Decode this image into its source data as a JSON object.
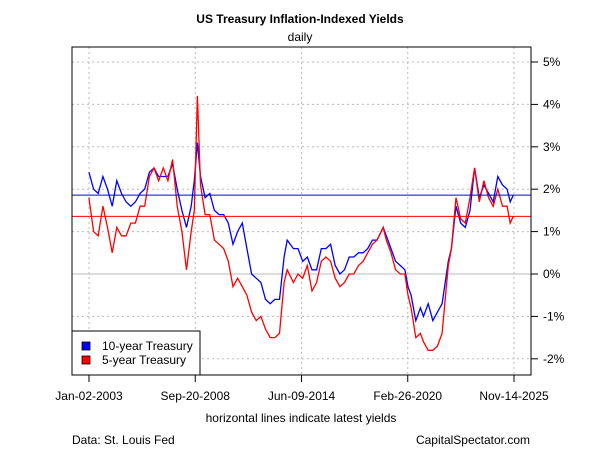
{
  "chart_data": {
    "type": "line",
    "title": "US Treasury Inflation-Indexed Yields",
    "subtitle": "daily",
    "xlabel": "horizontal lines indicate latest yields",
    "ylabel": "",
    "x_tick_labels": [
      "Jan-02-2003",
      "Sep-20-2008",
      "Jun-09-2014",
      "Feb-26-2020",
      "Nov-14-2025"
    ],
    "x_tick_dates": [
      "2003-01-02",
      "2008-09-20",
      "2014-06-09",
      "2020-02-26",
      "2025-11-14"
    ],
    "y_ticks": [
      -2,
      -1,
      0,
      1,
      2,
      3,
      4,
      5
    ],
    "y_tick_labels": [
      "-2%",
      "-1%",
      "0%",
      "1%",
      "2%",
      "3%",
      "4%",
      "5%"
    ],
    "ylim": [
      -2.4,
      5.4
    ],
    "y_axis_side": "right",
    "grid": true,
    "legend_position": "bottom-left",
    "latest_lines": {
      "10-year Treasury": 1.86,
      "5-year Treasury": 1.36
    },
    "series": [
      {
        "name": "10-year Treasury",
        "color": "#0000ff",
        "points": [
          [
            "2003-01",
            2.4
          ],
          [
            "2003-04",
            2.0
          ],
          [
            "2003-07",
            1.9
          ],
          [
            "2003-10",
            2.3
          ],
          [
            "2004-01",
            2.0
          ],
          [
            "2004-04",
            1.6
          ],
          [
            "2004-07",
            2.2
          ],
          [
            "2004-10",
            1.9
          ],
          [
            "2005-01",
            1.7
          ],
          [
            "2005-04",
            1.6
          ],
          [
            "2005-07",
            1.7
          ],
          [
            "2005-10",
            1.9
          ],
          [
            "2006-01",
            2.0
          ],
          [
            "2006-04",
            2.4
          ],
          [
            "2006-07",
            2.5
          ],
          [
            "2006-10",
            2.3
          ],
          [
            "2007-01",
            2.3
          ],
          [
            "2007-04",
            2.3
          ],
          [
            "2007-07",
            2.6
          ],
          [
            "2007-10",
            2.0
          ],
          [
            "2008-01",
            1.5
          ],
          [
            "2008-04",
            1.1
          ],
          [
            "2008-07",
            1.6
          ],
          [
            "2008-09",
            2.2
          ],
          [
            "2008-11",
            3.1
          ],
          [
            "2009-01",
            2.3
          ],
          [
            "2009-04",
            1.8
          ],
          [
            "2009-07",
            1.9
          ],
          [
            "2009-10",
            1.5
          ],
          [
            "2010-01",
            1.4
          ],
          [
            "2010-04",
            1.4
          ],
          [
            "2010-07",
            1.2
          ],
          [
            "2010-10",
            0.7
          ],
          [
            "2011-01",
            1.0
          ],
          [
            "2011-04",
            1.2
          ],
          [
            "2011-07",
            0.6
          ],
          [
            "2011-10",
            0.0
          ],
          [
            "2012-01",
            -0.1
          ],
          [
            "2012-04",
            -0.2
          ],
          [
            "2012-07",
            -0.6
          ],
          [
            "2012-10",
            -0.7
          ],
          [
            "2013-01",
            -0.6
          ],
          [
            "2013-04",
            -0.6
          ],
          [
            "2013-07",
            0.4
          ],
          [
            "2013-09",
            0.8
          ],
          [
            "2014-01",
            0.6
          ],
          [
            "2014-04",
            0.6
          ],
          [
            "2014-07",
            0.3
          ],
          [
            "2014-10",
            0.4
          ],
          [
            "2015-01",
            0.1
          ],
          [
            "2015-04",
            0.1
          ],
          [
            "2015-07",
            0.6
          ],
          [
            "2015-10",
            0.6
          ],
          [
            "2016-01",
            0.7
          ],
          [
            "2016-04",
            0.2
          ],
          [
            "2016-07",
            0.0
          ],
          [
            "2016-10",
            0.1
          ],
          [
            "2017-01",
            0.4
          ],
          [
            "2017-04",
            0.4
          ],
          [
            "2017-07",
            0.5
          ],
          [
            "2017-10",
            0.5
          ],
          [
            "2018-01",
            0.6
          ],
          [
            "2018-04",
            0.8
          ],
          [
            "2018-07",
            0.8
          ],
          [
            "2018-11",
            1.1
          ],
          [
            "2019-01",
            0.9
          ],
          [
            "2019-04",
            0.6
          ],
          [
            "2019-07",
            0.3
          ],
          [
            "2019-10",
            0.2
          ],
          [
            "2020-01",
            0.1
          ],
          [
            "2020-03",
            -0.3
          ],
          [
            "2020-05",
            -0.5
          ],
          [
            "2020-08",
            -1.1
          ],
          [
            "2020-11",
            -0.8
          ],
          [
            "2021-01",
            -1.0
          ],
          [
            "2021-04",
            -0.7
          ],
          [
            "2021-07",
            -1.1
          ],
          [
            "2021-10",
            -0.9
          ],
          [
            "2022-01",
            -0.7
          ],
          [
            "2022-03",
            -0.2
          ],
          [
            "2022-05",
            0.3
          ],
          [
            "2022-07",
            0.6
          ],
          [
            "2022-10",
            1.6
          ],
          [
            "2023-01",
            1.2
          ],
          [
            "2023-04",
            1.1
          ],
          [
            "2023-07",
            1.5
          ],
          [
            "2023-10",
            2.5
          ],
          [
            "2024-01",
            1.8
          ],
          [
            "2024-04",
            2.1
          ],
          [
            "2024-07",
            1.9
          ],
          [
            "2024-10",
            1.7
          ],
          [
            "2025-01",
            2.3
          ],
          [
            "2025-04",
            2.1
          ],
          [
            "2025-07",
            2.0
          ],
          [
            "2025-09",
            1.7
          ],
          [
            "2025-11",
            1.86
          ]
        ]
      },
      {
        "name": "5-year Treasury",
        "color": "#ff0000",
        "points": [
          [
            "2003-01",
            1.8
          ],
          [
            "2003-04",
            1.0
          ],
          [
            "2003-07",
            0.9
          ],
          [
            "2003-10",
            1.6
          ],
          [
            "2004-01",
            1.1
          ],
          [
            "2004-04",
            0.5
          ],
          [
            "2004-07",
            1.1
          ],
          [
            "2004-10",
            0.9
          ],
          [
            "2005-01",
            0.9
          ],
          [
            "2005-04",
            1.2
          ],
          [
            "2005-07",
            1.2
          ],
          [
            "2005-10",
            1.6
          ],
          [
            "2006-01",
            1.6
          ],
          [
            "2006-04",
            2.3
          ],
          [
            "2006-07",
            2.5
          ],
          [
            "2006-10",
            2.2
          ],
          [
            "2007-01",
            2.5
          ],
          [
            "2007-04",
            2.2
          ],
          [
            "2007-07",
            2.7
          ],
          [
            "2007-10",
            1.6
          ],
          [
            "2008-01",
            1.0
          ],
          [
            "2008-04",
            0.1
          ],
          [
            "2008-07",
            1.0
          ],
          [
            "2008-09",
            1.5
          ],
          [
            "2008-11",
            4.2
          ],
          [
            "2009-01",
            2.1
          ],
          [
            "2009-04",
            1.4
          ],
          [
            "2009-07",
            1.4
          ],
          [
            "2009-10",
            0.8
          ],
          [
            "2010-01",
            0.7
          ],
          [
            "2010-04",
            0.6
          ],
          [
            "2010-07",
            0.3
          ],
          [
            "2010-10",
            -0.3
          ],
          [
            "2011-01",
            -0.1
          ],
          [
            "2011-04",
            -0.3
          ],
          [
            "2011-07",
            -0.5
          ],
          [
            "2011-10",
            -0.9
          ],
          [
            "2012-01",
            -1.1
          ],
          [
            "2012-04",
            -1.0
          ],
          [
            "2012-07",
            -1.3
          ],
          [
            "2012-10",
            -1.5
          ],
          [
            "2013-01",
            -1.5
          ],
          [
            "2013-04",
            -1.4
          ],
          [
            "2013-07",
            -0.2
          ],
          [
            "2013-09",
            0.1
          ],
          [
            "2014-01",
            -0.2
          ],
          [
            "2014-04",
            0.0
          ],
          [
            "2014-07",
            -0.1
          ],
          [
            "2014-10",
            0.2
          ],
          [
            "2015-01",
            -0.4
          ],
          [
            "2015-04",
            -0.2
          ],
          [
            "2015-07",
            0.3
          ],
          [
            "2015-10",
            0.4
          ],
          [
            "2016-01",
            0.3
          ],
          [
            "2016-04",
            -0.1
          ],
          [
            "2016-07",
            -0.3
          ],
          [
            "2016-10",
            -0.2
          ],
          [
            "2017-01",
            0.0
          ],
          [
            "2017-04",
            0.0
          ],
          [
            "2017-07",
            0.2
          ],
          [
            "2017-10",
            0.3
          ],
          [
            "2018-01",
            0.5
          ],
          [
            "2018-04",
            0.7
          ],
          [
            "2018-07",
            0.8
          ],
          [
            "2018-11",
            1.1
          ],
          [
            "2019-01",
            0.8
          ],
          [
            "2019-04",
            0.5
          ],
          [
            "2019-07",
            0.1
          ],
          [
            "2019-10",
            0.0
          ],
          [
            "2020-01",
            0.0
          ],
          [
            "2020-03",
            -0.5
          ],
          [
            "2020-05",
            -0.8
          ],
          [
            "2020-08",
            -1.5
          ],
          [
            "2020-11",
            -1.4
          ],
          [
            "2021-01",
            -1.6
          ],
          [
            "2021-04",
            -1.8
          ],
          [
            "2021-07",
            -1.8
          ],
          [
            "2021-10",
            -1.7
          ],
          [
            "2022-01",
            -1.4
          ],
          [
            "2022-03",
            -0.6
          ],
          [
            "2022-05",
            0.2
          ],
          [
            "2022-07",
            0.6
          ],
          [
            "2022-10",
            1.8
          ],
          [
            "2023-01",
            1.3
          ],
          [
            "2023-04",
            1.2
          ],
          [
            "2023-07",
            1.8
          ],
          [
            "2023-10",
            2.5
          ],
          [
            "2024-01",
            1.7
          ],
          [
            "2024-04",
            2.2
          ],
          [
            "2024-07",
            1.8
          ],
          [
            "2024-10",
            1.6
          ],
          [
            "2025-01",
            2.0
          ],
          [
            "2025-04",
            1.6
          ],
          [
            "2025-07",
            1.6
          ],
          [
            "2025-09",
            1.2
          ],
          [
            "2025-11",
            1.36
          ]
        ]
      }
    ]
  },
  "footer": {
    "source": "Data: St. Louis Fed",
    "brand": "CapitalSpectator.com"
  }
}
